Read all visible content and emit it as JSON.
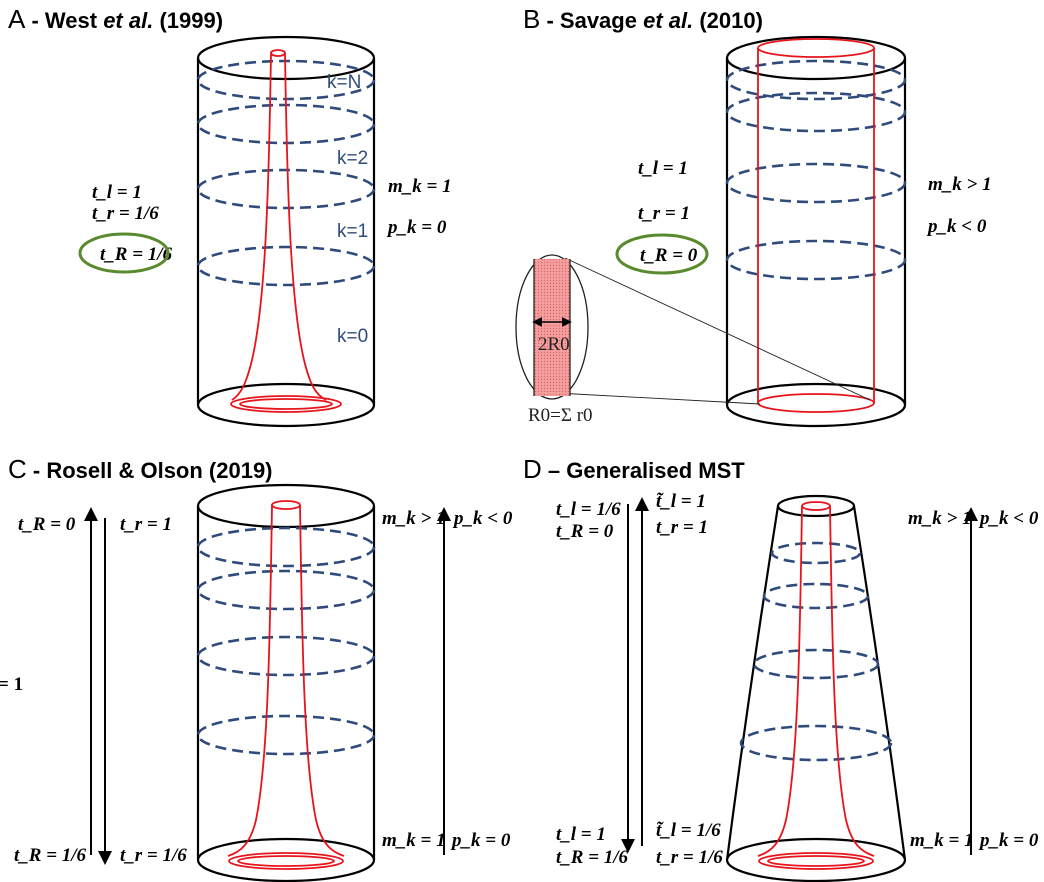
{
  "panels": {
    "a": {
      "letter": "A",
      "sep": " - ",
      "author": "West ",
      "etal": "et al.",
      "year": " (1999)",
      "k_labels": [
        "k=N",
        "k=2",
        "k=1",
        "k=0"
      ],
      "left": [
        "t_l = 1",
        "t_r = 1/6",
        "t_R = 1/6"
      ],
      "right": [
        "m_k = 1",
        "p_k = 0"
      ]
    },
    "b": {
      "letter": "B",
      "sep": " - ",
      "author": "Savage ",
      "etal": "et al.",
      "year": " (2010)",
      "left": [
        "t_l = 1",
        "t_r = 1",
        "t_R = 0"
      ],
      "right": [
        "m_k > 1",
        "p_k < 0"
      ],
      "inset_label": "2R0",
      "inset_caption": "R0=Σ r0"
    },
    "c": {
      "letter": "C",
      "title": " - Rosell & Olson (2019)",
      "left_top": [
        "t_R = 0",
        "t_r = 1"
      ],
      "left_bottom": [
        "t_R = 1/6",
        "t_r = 1/6"
      ],
      "right_top": [
        "m_k > 1",
        "p_k < 0"
      ],
      "right_bottom": [
        "m_k = 1",
        "p_k = 0"
      ],
      "edge": "= 1"
    },
    "d": {
      "letter": "D",
      "title": " – Generalised MST",
      "left_top": [
        "t_l = 1/6",
        "t_R = 0",
        "t̃_l = 1",
        "t_r = 1"
      ],
      "left_bottom": [
        "t_l = 1",
        "t_R = 1/6",
        "t̃_l = 1/6",
        "t_r = 1/6"
      ],
      "right_top": [
        "m_k > 1",
        "p_k < 0"
      ],
      "right_bottom": [
        "m_k = 1",
        "p_k = 0"
      ]
    }
  },
  "colors": {
    "outline": "#000000",
    "ring": "#2f4b7c",
    "vessel": "#e8141b",
    "highlight": "#5a8a2e",
    "inset_fill": "#f08080"
  }
}
